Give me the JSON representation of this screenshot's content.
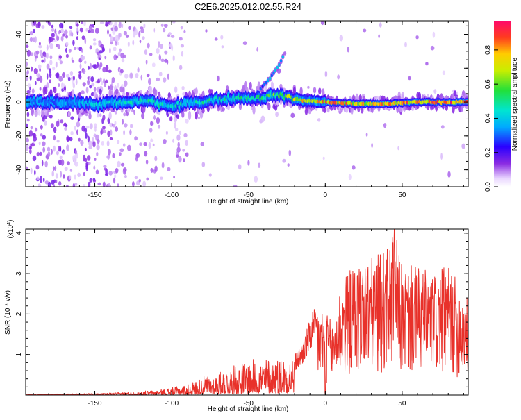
{
  "title": "C2E6.2025.012.02.55.R24",
  "colors": {
    "snr_line": "#e8312a",
    "frame": "#000000",
    "background": "#ffffff"
  },
  "chart_data": [
    {
      "type": "heatmap",
      "xlabel": "Height of straight line (km)",
      "ylabel": "Frequency (Hz)",
      "xlim": [
        -195,
        93
      ],
      "ylim": [
        -50,
        48
      ],
      "x_ticks": [
        -150,
        -100,
        -50,
        0,
        50
      ],
      "x_tick_labels": [
        "-150",
        "-100",
        "-50",
        "0",
        "50"
      ],
      "y_ticks": [
        -40,
        -20,
        0,
        20,
        40
      ],
      "y_tick_labels": [
        "-40",
        "-20",
        "0",
        "20",
        "40"
      ],
      "colorbar": {
        "label": "Normalized spectral amplitude",
        "range": [
          0,
          0.97
        ],
        "ticks": [
          0.0,
          0.2,
          0.4,
          0.6,
          0.8
        ],
        "tick_labels": [
          "0.0",
          "0.2",
          "0.4",
          "0.6",
          "0.8"
        ]
      },
      "ridge": [
        {
          "x": -195,
          "y": 0,
          "a": 0.35
        },
        {
          "x": -170,
          "y": 0,
          "a": 0.38
        },
        {
          "x": -150,
          "y": -1,
          "a": 0.42
        },
        {
          "x": -130,
          "y": 0,
          "a": 0.45
        },
        {
          "x": -115,
          "y": 1,
          "a": 0.5
        },
        {
          "x": -100,
          "y": -3,
          "a": 0.45
        },
        {
          "x": -85,
          "y": 0,
          "a": 0.5
        },
        {
          "x": -70,
          "y": 1,
          "a": 0.5
        },
        {
          "x": -55,
          "y": 3,
          "a": 0.52
        },
        {
          "x": -45,
          "y": 2,
          "a": 0.55
        },
        {
          "x": -35,
          "y": 4,
          "a": 0.6
        },
        {
          "x": -25,
          "y": 3,
          "a": 0.7
        },
        {
          "x": -15,
          "y": 1,
          "a": 0.8
        },
        {
          "x": 0,
          "y": 0,
          "a": 0.85
        },
        {
          "x": 20,
          "y": -1,
          "a": 0.8
        },
        {
          "x": 40,
          "y": -1,
          "a": 0.82
        },
        {
          "x": 60,
          "y": 0,
          "a": 0.88
        },
        {
          "x": 93,
          "y": 0,
          "a": 0.9
        }
      ],
      "branch": [
        {
          "x": -42,
          "y": 8,
          "a": 0.3
        },
        {
          "x": -36,
          "y": 14,
          "a": 0.4
        },
        {
          "x": -30,
          "y": 22,
          "a": 0.45
        },
        {
          "x": -27,
          "y": 28,
          "a": 0.4
        }
      ]
    },
    {
      "type": "line",
      "xlabel": "Height of straight line (km)",
      "ylabel": "SNR (10 * v/v)",
      "y_multiplier_label": "(x10^4)",
      "xlim": [
        -195,
        93
      ],
      "ylim": [
        0,
        4.1
      ],
      "x_ticks": [
        -150,
        -100,
        -50,
        0,
        50
      ],
      "x_tick_labels": [
        "-150",
        "-100",
        "-50",
        "0",
        "50"
      ],
      "y_ticks": [
        1,
        2,
        3,
        4
      ],
      "y_tick_labels": [
        "1",
        "2",
        "3",
        "4"
      ],
      "envelope": [
        {
          "x": -195,
          "y": 0.02
        },
        {
          "x": -150,
          "y": 0.04
        },
        {
          "x": -130,
          "y": 0.07
        },
        {
          "x": -110,
          "y": 0.12
        },
        {
          "x": -90,
          "y": 0.25
        },
        {
          "x": -80,
          "y": 0.45
        },
        {
          "x": -70,
          "y": 0.55
        },
        {
          "x": -55,
          "y": 0.8
        },
        {
          "x": -45,
          "y": 0.9
        },
        {
          "x": -30,
          "y": 0.95
        },
        {
          "x": -20,
          "y": 1.0
        },
        {
          "x": -15,
          "y": 1.3
        },
        {
          "x": -8,
          "y": 2.1
        },
        {
          "x": -3,
          "y": 2.2
        },
        {
          "x": 5,
          "y": 1.8
        },
        {
          "x": 10,
          "y": 2.8
        },
        {
          "x": 20,
          "y": 3.3
        },
        {
          "x": 30,
          "y": 3.4
        },
        {
          "x": 40,
          "y": 3.6
        },
        {
          "x": 45,
          "y": 4.1
        },
        {
          "x": 50,
          "y": 3.2
        },
        {
          "x": 60,
          "y": 3.2
        },
        {
          "x": 70,
          "y": 3.0
        },
        {
          "x": 80,
          "y": 3.2
        },
        {
          "x": 93,
          "y": 2.4
        }
      ]
    }
  ]
}
